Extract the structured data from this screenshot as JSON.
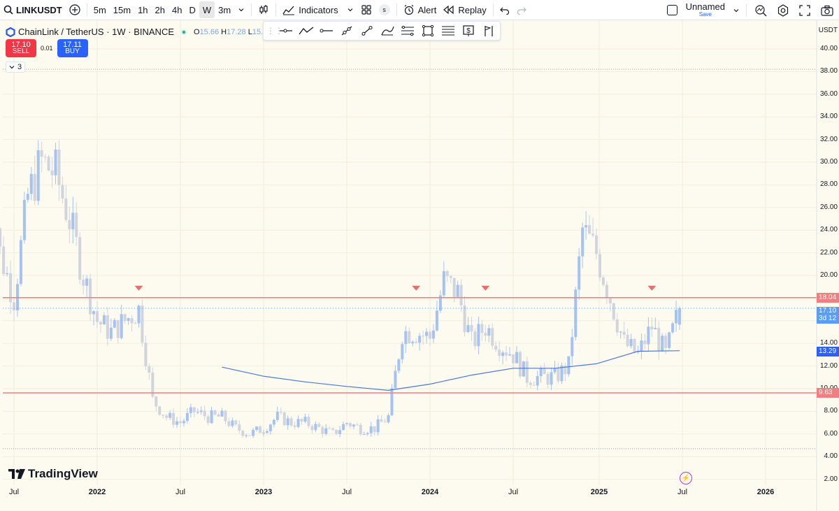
{
  "toolbar": {
    "symbol": "LINKUSDT",
    "intervals": [
      "5m",
      "15m",
      "1h",
      "2h",
      "4h",
      "D",
      "W",
      "3m"
    ],
    "active_interval": "W",
    "indicators_label": "Indicators",
    "badge_label": "s",
    "alert_label": "Alert",
    "replay_label": "Replay",
    "layout_name": "Unnamed",
    "save_label": "Save"
  },
  "legend": {
    "title": "ChainLink / TetherUS · 1W · BINANCE",
    "o_label": "O",
    "o_value": "15.66",
    "h_label": "H",
    "h_value": "17.28",
    "l_label": "L",
    "l_value": "15."
  },
  "trade": {
    "sell_price": "17.10",
    "sell_label": "SELL",
    "spread": "0.01",
    "buy_price": "17.11",
    "buy_label": "BUY"
  },
  "indicators_collapsed_count": "3",
  "axis": {
    "currency": "USDT",
    "price_ticks": [
      "40.00",
      "38.00",
      "36.00",
      "34.00",
      "32.00",
      "30.00",
      "28.00",
      "26.00",
      "24.00",
      "22.00",
      "20.00",
      "18.00",
      "16.00",
      "14.00",
      "12.00",
      "10.00",
      "8.00",
      "6.00",
      "4.00",
      "2.00"
    ],
    "time_ticks": [
      {
        "label": "Jul",
        "major": false
      },
      {
        "label": "2022",
        "major": true
      },
      {
        "label": "Jul",
        "major": false
      },
      {
        "label": "2023",
        "major": true
      },
      {
        "label": "Jul",
        "major": false
      },
      {
        "label": "2024",
        "major": true
      },
      {
        "label": "Jul",
        "major": false
      },
      {
        "label": "2025",
        "major": true
      },
      {
        "label": "Jul",
        "major": false
      },
      {
        "label": "2026",
        "major": true
      }
    ],
    "resistance_tag": "18.04",
    "support_tag": "9.63",
    "last_price_tag": "17.10",
    "countdown_tag": "3d 12",
    "ma_tag": "13.29"
  },
  "colors": {
    "up": "#a4c2f4",
    "down": "#d1d4dc",
    "line": "#f08080",
    "ma": "#4a78d8",
    "price_tag": "#5b9cf6",
    "ma_tag": "#2962ff",
    "line_tag": "#f08080"
  },
  "chart_data": {
    "type": "candlestick",
    "symbol": "ChainLink / TetherUS",
    "interval": "1W",
    "exchange": "BINANCE",
    "ylim": [
      2,
      40
    ],
    "horizontal_levels": [
      18.04,
      9.63
    ],
    "reference_levels_dotted": [
      38.2,
      4.7
    ],
    "moving_average": {
      "x": [
        "2022-10",
        "2023-01",
        "2023-04",
        "2023-07",
        "2023-10",
        "2024-01",
        "2024-04",
        "2024-07",
        "2024-10",
        "2025-01",
        "2025-04",
        "2025-07"
      ],
      "values": [
        11.9,
        11.1,
        10.6,
        10.2,
        9.85,
        10.4,
        11.2,
        11.8,
        11.8,
        12.2,
        13.3,
        13.35
      ]
    },
    "sell_markers": [
      "2022-04",
      "2023-12",
      "2024-05",
      "2025-05"
    ],
    "close_path": {
      "x": [
        "2021-05",
        "2021-06",
        "2021-07",
        "2021-08",
        "2021-09",
        "2021-10",
        "2021-11",
        "2021-12",
        "2022-01",
        "2022-02",
        "2022-03",
        "2022-04",
        "2022-05",
        "2022-06",
        "2022-07",
        "2022-08",
        "2022-09",
        "2022-10",
        "2022-11",
        "2022-12",
        "2023-01",
        "2023-02",
        "2023-03",
        "2023-04",
        "2023-05",
        "2023-06",
        "2023-07",
        "2023-08",
        "2023-09",
        "2023-10",
        "2023-11",
        "2023-12",
        "2024-01",
        "2024-02",
        "2024-03",
        "2024-04",
        "2024-05",
        "2024-06",
        "2024-07",
        "2024-08",
        "2024-09",
        "2024-10",
        "2024-11",
        "2024-12",
        "2025-01",
        "2025-02",
        "2025-03",
        "2025-04",
        "2025-05",
        "2025-06",
        "2025-07"
      ],
      "values": [
        32,
        22,
        18,
        27,
        30,
        29,
        25,
        20,
        16,
        15,
        16,
        17,
        9,
        7.5,
        7,
        8,
        7.5,
        7.5,
        6.5,
        6,
        6.5,
        7.5,
        7,
        7,
        6.5,
        6,
        7,
        6.5,
        6.5,
        7.5,
        15,
        15,
        14.5,
        19.5,
        18.5,
        14,
        15.5,
        14,
        13,
        11,
        11,
        11,
        12,
        24,
        22,
        18,
        14,
        13,
        15.5,
        13,
        17.1
      ]
    }
  }
}
